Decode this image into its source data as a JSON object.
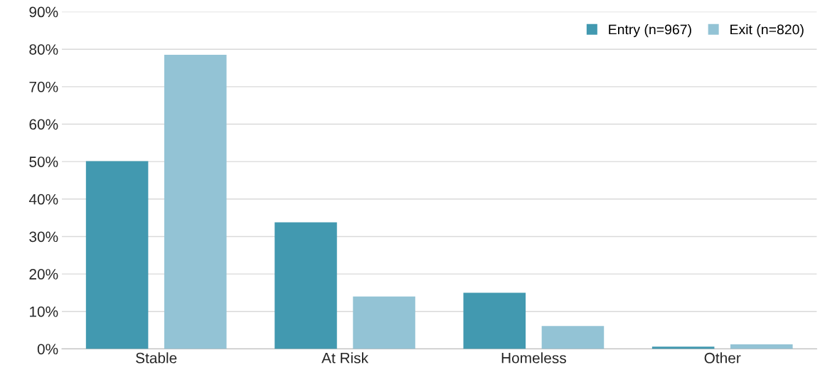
{
  "chart_data": {
    "type": "bar",
    "categories": [
      "Stable",
      "At Risk",
      "Homeless",
      "Other"
    ],
    "series": [
      {
        "name": "Entry (n=967)",
        "color": "#4299b0",
        "values": [
          50.1,
          33.8,
          15.0,
          0.6
        ]
      },
      {
        "name": "Exit (n=820)",
        "color": "#93c3d5",
        "values": [
          78.5,
          14.0,
          6.1,
          1.2
        ]
      }
    ],
    "ylim": [
      0,
      90
    ],
    "yticks": [
      {
        "value": 0,
        "label": "0%"
      },
      {
        "value": 10,
        "label": "10%"
      },
      {
        "value": 20,
        "label": "20%"
      },
      {
        "value": 30,
        "label": "30%"
      },
      {
        "value": 40,
        "label": "40%"
      },
      {
        "value": 50,
        "label": "50%"
      },
      {
        "value": 60,
        "label": "60%"
      },
      {
        "value": 70,
        "label": "70%"
      },
      {
        "value": 80,
        "label": "80%"
      },
      {
        "value": 90,
        "label": "90%"
      }
    ],
    "grid": "y",
    "legend": "top right"
  }
}
